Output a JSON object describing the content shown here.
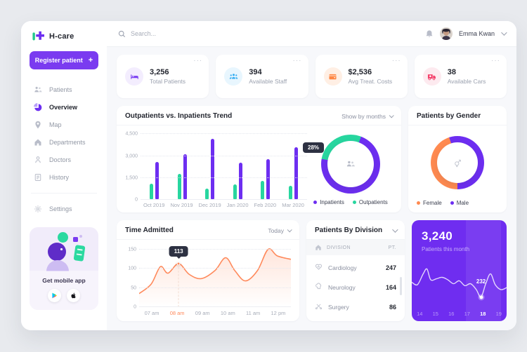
{
  "brand": {
    "name": "H-care"
  },
  "topbar": {
    "search_placeholder": "Search...",
    "user_name": "Emma Kwan"
  },
  "sidebar": {
    "register_label": "Register patient",
    "register_plus": "+",
    "items": [
      {
        "id": "patients",
        "label": "Patients",
        "active": false
      },
      {
        "id": "overview",
        "label": "Overview",
        "active": true
      },
      {
        "id": "map",
        "label": "Map",
        "active": false
      },
      {
        "id": "departments",
        "label": "Departments",
        "active": false
      },
      {
        "id": "doctors",
        "label": "Doctors",
        "active": false
      },
      {
        "id": "history",
        "label": "History",
        "active": false
      }
    ],
    "settings_label": "Settings",
    "promo": {
      "title": "Get mobile app"
    }
  },
  "stats": [
    {
      "id": "total-patients",
      "icon": "bed",
      "value": "3,256",
      "label": "Total Patients",
      "color": "#7b40f2",
      "bg": "#f3edfe",
      "menu": "···"
    },
    {
      "id": "available-staff",
      "icon": "staff",
      "value": "394",
      "label": "Available Staff",
      "color": "#35aef2",
      "bg": "#e8f6fe",
      "menu": "···"
    },
    {
      "id": "avg-treat-costs",
      "icon": "wallet",
      "value": "$2,536",
      "label": "Avg Treat. Costs",
      "color": "#ff8743",
      "bg": "#ffefe4",
      "menu": "···"
    },
    {
      "id": "available-cars",
      "icon": "ambulance",
      "value": "38",
      "label": "Available Cars",
      "color": "#f4426c",
      "bg": "#fdeaef",
      "menu": "···"
    }
  ],
  "cards": {
    "trend": {
      "title": "Outpatients vs. Inpatients Trend",
      "filter": "Show by months",
      "tooltip": "28%"
    },
    "gender": {
      "title": "Patients by Gender"
    },
    "time": {
      "title": "Time Admitted",
      "filter": "Today",
      "tooltip": "113"
    },
    "division": {
      "title": "Patients By Division",
      "col_division": "DIVISION",
      "col_pt": "PT.",
      "rows": [
        {
          "icon": "heart",
          "name": "Cardiology",
          "value": "247"
        },
        {
          "icon": "brain",
          "name": "Neurology",
          "value": "164"
        },
        {
          "icon": "scissors",
          "name": "Surgery",
          "value": "86"
        }
      ]
    },
    "month": {
      "value": "3,240",
      "label": "Patients this month",
      "tooltip": "232"
    }
  },
  "chart_data": [
    {
      "type": "bar",
      "id": "trend-bar",
      "title": "Outpatients vs. Inpatients Trend",
      "categories": [
        "Oct 2019",
        "Nov 2019",
        "Dec 2019",
        "Jan 2020",
        "Feb 2020",
        "Mar 2020"
      ],
      "series": [
        {
          "name": "Outpatients",
          "color": "#27d69f",
          "values": [
            1100,
            1800,
            750,
            1050,
            1300,
            950
          ]
        },
        {
          "name": "Inpatients",
          "color": "#6d2ef1",
          "values": [
            2600,
            3100,
            4200,
            2550,
            2800,
            3600
          ]
        }
      ],
      "ylim": [
        0,
        4800
      ],
      "ytick_values": [
        0,
        1500,
        3000,
        4500
      ],
      "ytick_labels": [
        "0",
        "1,500",
        "3,000",
        "4,500"
      ],
      "grid": "dotted",
      "legend_position": "right-below-donut"
    },
    {
      "type": "pie",
      "id": "trend-donut",
      "segments": [
        {
          "label": "Outpatients",
          "value": 28,
          "color": "#27d69f"
        },
        {
          "label": "Inpatients",
          "value": 72,
          "color": "#6d2ef1"
        }
      ],
      "start_angle": 280,
      "annotation": "28%",
      "legend": [
        {
          "label": "Inpatients",
          "color": "#6d2ef1"
        },
        {
          "label": "Outpatients",
          "color": "#27d69f"
        }
      ]
    },
    {
      "type": "pie",
      "id": "gender-donut",
      "title": "Patients by Gender",
      "segments": [
        {
          "label": "Female",
          "value": 45,
          "color": "#ff8a50"
        },
        {
          "label": "Male",
          "value": 55,
          "color": "#6d2ef1"
        }
      ],
      "start_angle": 180,
      "legend": [
        {
          "label": "Female",
          "color": "#ff8a50"
        },
        {
          "label": "Male",
          "color": "#6d2ef1"
        }
      ]
    },
    {
      "type": "line",
      "id": "time-line",
      "title": "Time Admitted",
      "color": "#ff8a5c",
      "x_labels": [
        "07 am",
        "08 am",
        "09 am",
        "10 am",
        "11 am",
        "12 pm"
      ],
      "highlighted_label": "08 am",
      "ymax": 160,
      "ytick_values": [
        0,
        50,
        100,
        150
      ],
      "ytick_labels": [
        "0",
        "50",
        "100",
        "150"
      ],
      "points": [
        [
          0,
          35
        ],
        [
          8,
          60
        ],
        [
          14,
          105
        ],
        [
          19,
          88
        ],
        [
          26,
          113
        ],
        [
          33,
          85
        ],
        [
          41,
          74
        ],
        [
          50,
          95
        ],
        [
          57,
          128
        ],
        [
          63,
          95
        ],
        [
          70,
          68
        ],
        [
          78,
          95
        ],
        [
          85,
          150
        ],
        [
          91,
          133
        ],
        [
          100,
          124
        ]
      ],
      "marker": {
        "x": 26,
        "value": 113,
        "label": "113"
      }
    },
    {
      "type": "line",
      "id": "month-line",
      "color": "#ffffff",
      "x_labels": [
        "14",
        "15",
        "16",
        "17",
        "18",
        "19"
      ],
      "highlighted_label": "18",
      "ymax": 100,
      "points": [
        [
          0,
          45
        ],
        [
          6,
          40
        ],
        [
          12,
          62
        ],
        [
          16,
          72
        ],
        [
          20,
          50
        ],
        [
          26,
          52
        ],
        [
          32,
          55
        ],
        [
          38,
          50
        ],
        [
          44,
          42
        ],
        [
          50,
          48
        ],
        [
          56,
          38
        ],
        [
          62,
          42
        ],
        [
          68,
          30
        ],
        [
          73,
          15
        ],
        [
          78,
          42
        ],
        [
          83,
          62
        ],
        [
          88,
          40
        ],
        [
          94,
          30
        ],
        [
          100,
          34
        ]
      ],
      "marker": {
        "x": 73,
        "value": 15,
        "label": "232"
      }
    }
  ]
}
